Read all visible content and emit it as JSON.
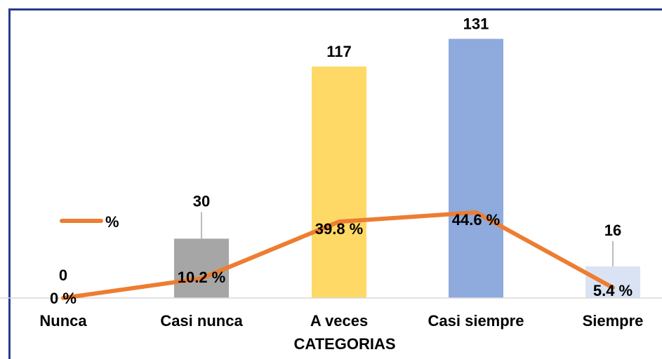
{
  "chart_data": {
    "type": "bar",
    "categories": [
      "Nunca",
      "Casi nunca",
      "A veces",
      "Casi siempre",
      "Siempre"
    ],
    "series": [
      {
        "values": [
          0,
          30,
          117,
          131,
          16
        ]
      },
      {
        "name": "%",
        "type": "line",
        "values": [
          0,
          10.2,
          39.8,
          44.6,
          5.4
        ]
      }
    ],
    "bar_labels": [
      "0",
      "30",
      "117",
      "131",
      "16"
    ],
    "line_labels": [
      "0 %",
      "10.2 %",
      "39.8 %",
      "44.6 %",
      "5.4 %"
    ],
    "xlabel": "CATEGORIAS",
    "ylim": [
      0,
      140
    ],
    "legend": {
      "label": "%",
      "position": "left"
    },
    "grid": false
  },
  "colors": {
    "bars": [
      "#d9e2f3",
      "#a6a6a6",
      "#ffd966",
      "#8faadc",
      "#dae3f3"
    ],
    "line": "#ed7d31",
    "frame": "#2b3a8c"
  }
}
